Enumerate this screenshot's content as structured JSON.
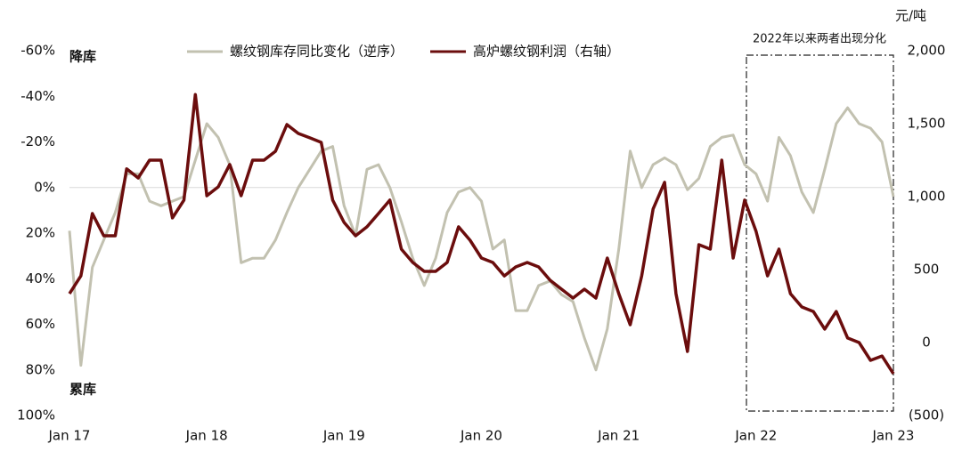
{
  "chart_data": {
    "type": "line",
    "annotations": {
      "top_left": "降库",
      "bottom_left": "累库",
      "box": "2022年以来两者出现分化"
    },
    "y2_unit": "元/吨",
    "categories": [
      "Jan 17",
      null,
      null,
      null,
      null,
      null,
      null,
      null,
      null,
      null,
      null,
      null,
      "Jan 18",
      null,
      null,
      null,
      null,
      null,
      null,
      null,
      null,
      null,
      null,
      null,
      "Jan 19",
      null,
      null,
      null,
      null,
      null,
      null,
      null,
      null,
      null,
      null,
      null,
      "Jan 20",
      null,
      null,
      null,
      null,
      null,
      null,
      null,
      null,
      null,
      null,
      null,
      "Jan 21",
      null,
      null,
      null,
      null,
      null,
      null,
      null,
      null,
      null,
      null,
      null,
      "Jan 22",
      null,
      null,
      null,
      null,
      null,
      null,
      null,
      null,
      null,
      null,
      null,
      "Jan 23"
    ],
    "ylim": [
      100,
      -60
    ],
    "yticks": [
      {
        "value": -60,
        "label": "-60%"
      },
      {
        "value": -40,
        "label": "-40%"
      },
      {
        "value": -20,
        "label": "-20%"
      },
      {
        "value": 0,
        "label": "0%"
      },
      {
        "value": 20,
        "label": "20%"
      },
      {
        "value": 40,
        "label": "40%"
      },
      {
        "value": 60,
        "label": "60%"
      },
      {
        "value": 80,
        "label": "80%"
      },
      {
        "value": 100,
        "label": "100%"
      }
    ],
    "y2lim": [
      -500,
      2000
    ],
    "y2ticks": [
      {
        "value": -500,
        "label": "(500)"
      },
      0,
      500,
      {
        "value": 1000,
        "label": "1,000"
      },
      {
        "value": 1500,
        "label": "1,500"
      },
      {
        "value": 2000,
        "label": "2,000"
      }
    ],
    "zero_line": true,
    "series": [
      {
        "name": "螺纹钢库存同比变化（逆序）",
        "color": "#c2c1b0",
        "axis": "y",
        "values": [
          19,
          78,
          35,
          23,
          11,
          -6,
          -6,
          6,
          8,
          6,
          4,
          -12,
          -28,
          -22,
          -10,
          33,
          31,
          31,
          23,
          11,
          0,
          -8,
          -16,
          -18,
          8,
          21,
          -8,
          -10,
          0,
          15,
          31,
          43,
          31,
          11,
          2,
          0,
          6,
          27,
          23,
          54,
          54,
          43,
          41,
          47,
          50,
          66,
          80,
          62,
          27,
          -16,
          0,
          -10,
          -13,
          -10,
          1,
          -4,
          -18,
          -22,
          -23,
          -10,
          -6,
          6,
          -22,
          -14,
          2,
          11,
          -8,
          -28,
          -35,
          -28,
          -26,
          -20,
          4
        ]
      },
      {
        "name": "高炉螺纹钢利润（右轴）",
        "color": "#6b0d0d",
        "axis": "y2",
        "values": [
          335,
          457,
          884,
          732,
          732,
          1190,
          1128,
          1250,
          1250,
          854,
          976,
          1700,
          1006,
          1067,
          1220,
          1006,
          1250,
          1250,
          1311,
          1494,
          1433,
          1403,
          1372,
          976,
          823,
          732,
          793,
          884,
          976,
          640,
          549,
          488,
          488,
          549,
          793,
          701,
          579,
          549,
          457,
          518,
          549,
          518,
          427,
          366,
          305,
          366,
          305,
          579,
          335,
          122,
          457,
          915,
          1098,
          335,
          -61,
          671,
          640,
          1250,
          579,
          976,
          762,
          457,
          640,
          335,
          244,
          213,
          92,
          213,
          31,
          0,
          -122,
          -92,
          -214
        ]
      }
    ]
  }
}
